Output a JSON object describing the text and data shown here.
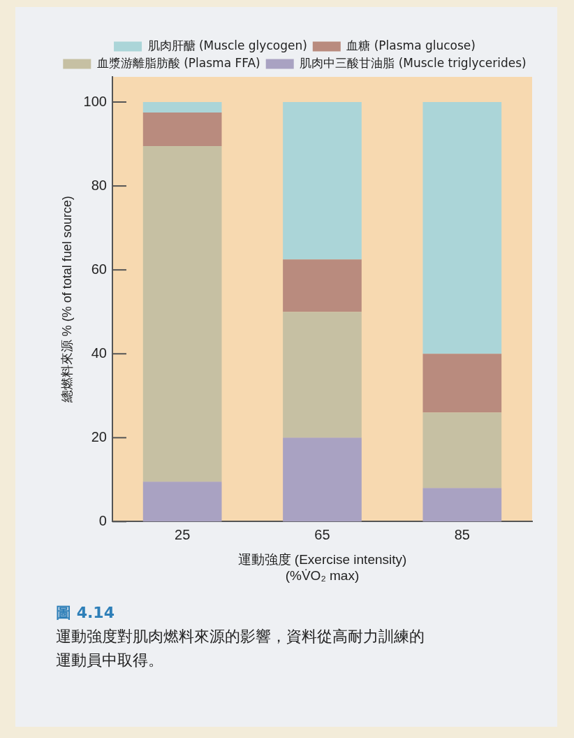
{
  "chart_data": {
    "type": "bar",
    "stacked": true,
    "categories": [
      "25",
      "65",
      "85"
    ],
    "series": [
      {
        "name": "肌肉中三酸甘油脂 (Muscle triglycerides)",
        "color": "#a9a2c2",
        "values": [
          9.5,
          20,
          8
        ]
      },
      {
        "name": "血漿游離脂肪酸 (Plasma FFA)",
        "color": "#c6c0a3",
        "values": [
          80,
          30,
          18
        ]
      },
      {
        "name": "血糖 (Plasma glucose)",
        "color": "#b98b7e",
        "values": [
          8,
          12.5,
          14
        ]
      },
      {
        "name": "肌肉肝醣 (Muscle glycogen)",
        "color": "#abd5d8",
        "values": [
          2.5,
          37.5,
          60
        ]
      }
    ],
    "ylim": [
      0,
      106
    ],
    "yticks": [
      0,
      20,
      40,
      60,
      80,
      100
    ],
    "xlabel": "運動強度 (Exercise intensity)\n(%V̇O₂ max)",
    "ylabel": "總燃料來源 % (% of total fuel source)",
    "legend": "top",
    "annotations": [
      "圖 4.14",
      "運動強度對肌肉燃料來源的影響，資料從高耐力訓練的運動員中取得。"
    ]
  }
}
